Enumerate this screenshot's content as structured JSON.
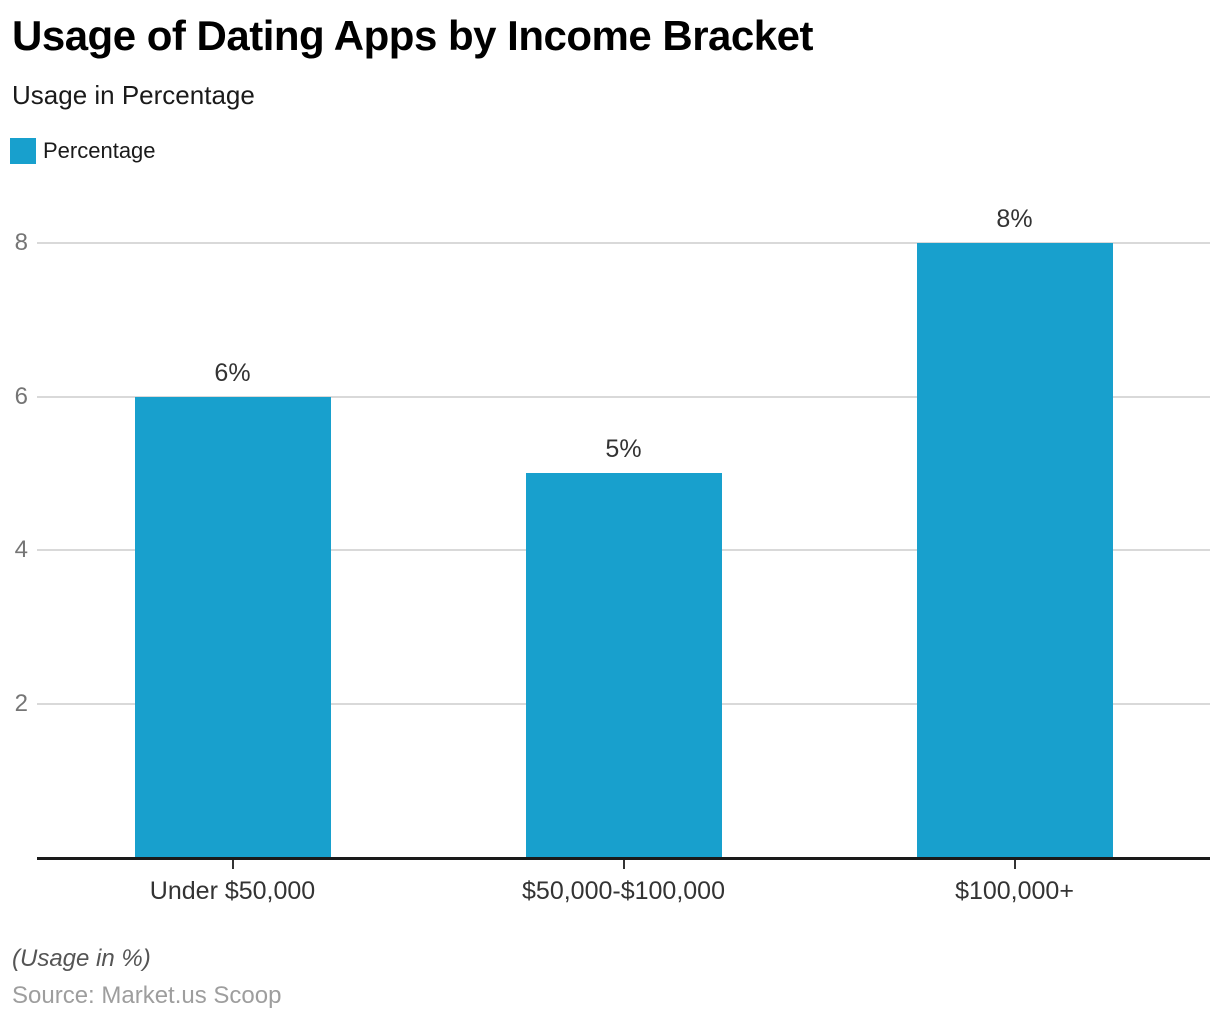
{
  "header": {
    "title": "Usage of Dating Apps by Income Bracket",
    "subtitle": "Usage in Percentage"
  },
  "legend": {
    "label": "Percentage"
  },
  "chart_data": {
    "type": "bar",
    "title": "Usage of Dating Apps by Income Bracket",
    "subtitle": "Usage in Percentage",
    "categories": [
      "Under $50,000",
      "$50,000-$100,000",
      "$100,000+"
    ],
    "series": [
      {
        "name": "Percentage",
        "values": [
          6,
          5,
          8
        ],
        "value_labels": [
          "6%",
          "5%",
          "8%"
        ]
      }
    ],
    "ylabel": "",
    "xlabel": "",
    "ylim": [
      0,
      8
    ],
    "yticks": [
      2,
      4,
      6,
      8
    ],
    "grid": true,
    "legend_position": "top-left",
    "colors": {
      "bar": "#18a0cd",
      "gridline": "#d9d9d9",
      "axis": "#1a1a1a",
      "y_tick_label": "#757575",
      "x_tick_label": "#333333",
      "data_label": "#333333"
    }
  },
  "footer": {
    "note": "(Usage in %)",
    "source": "Source: Market.us Scoop"
  }
}
